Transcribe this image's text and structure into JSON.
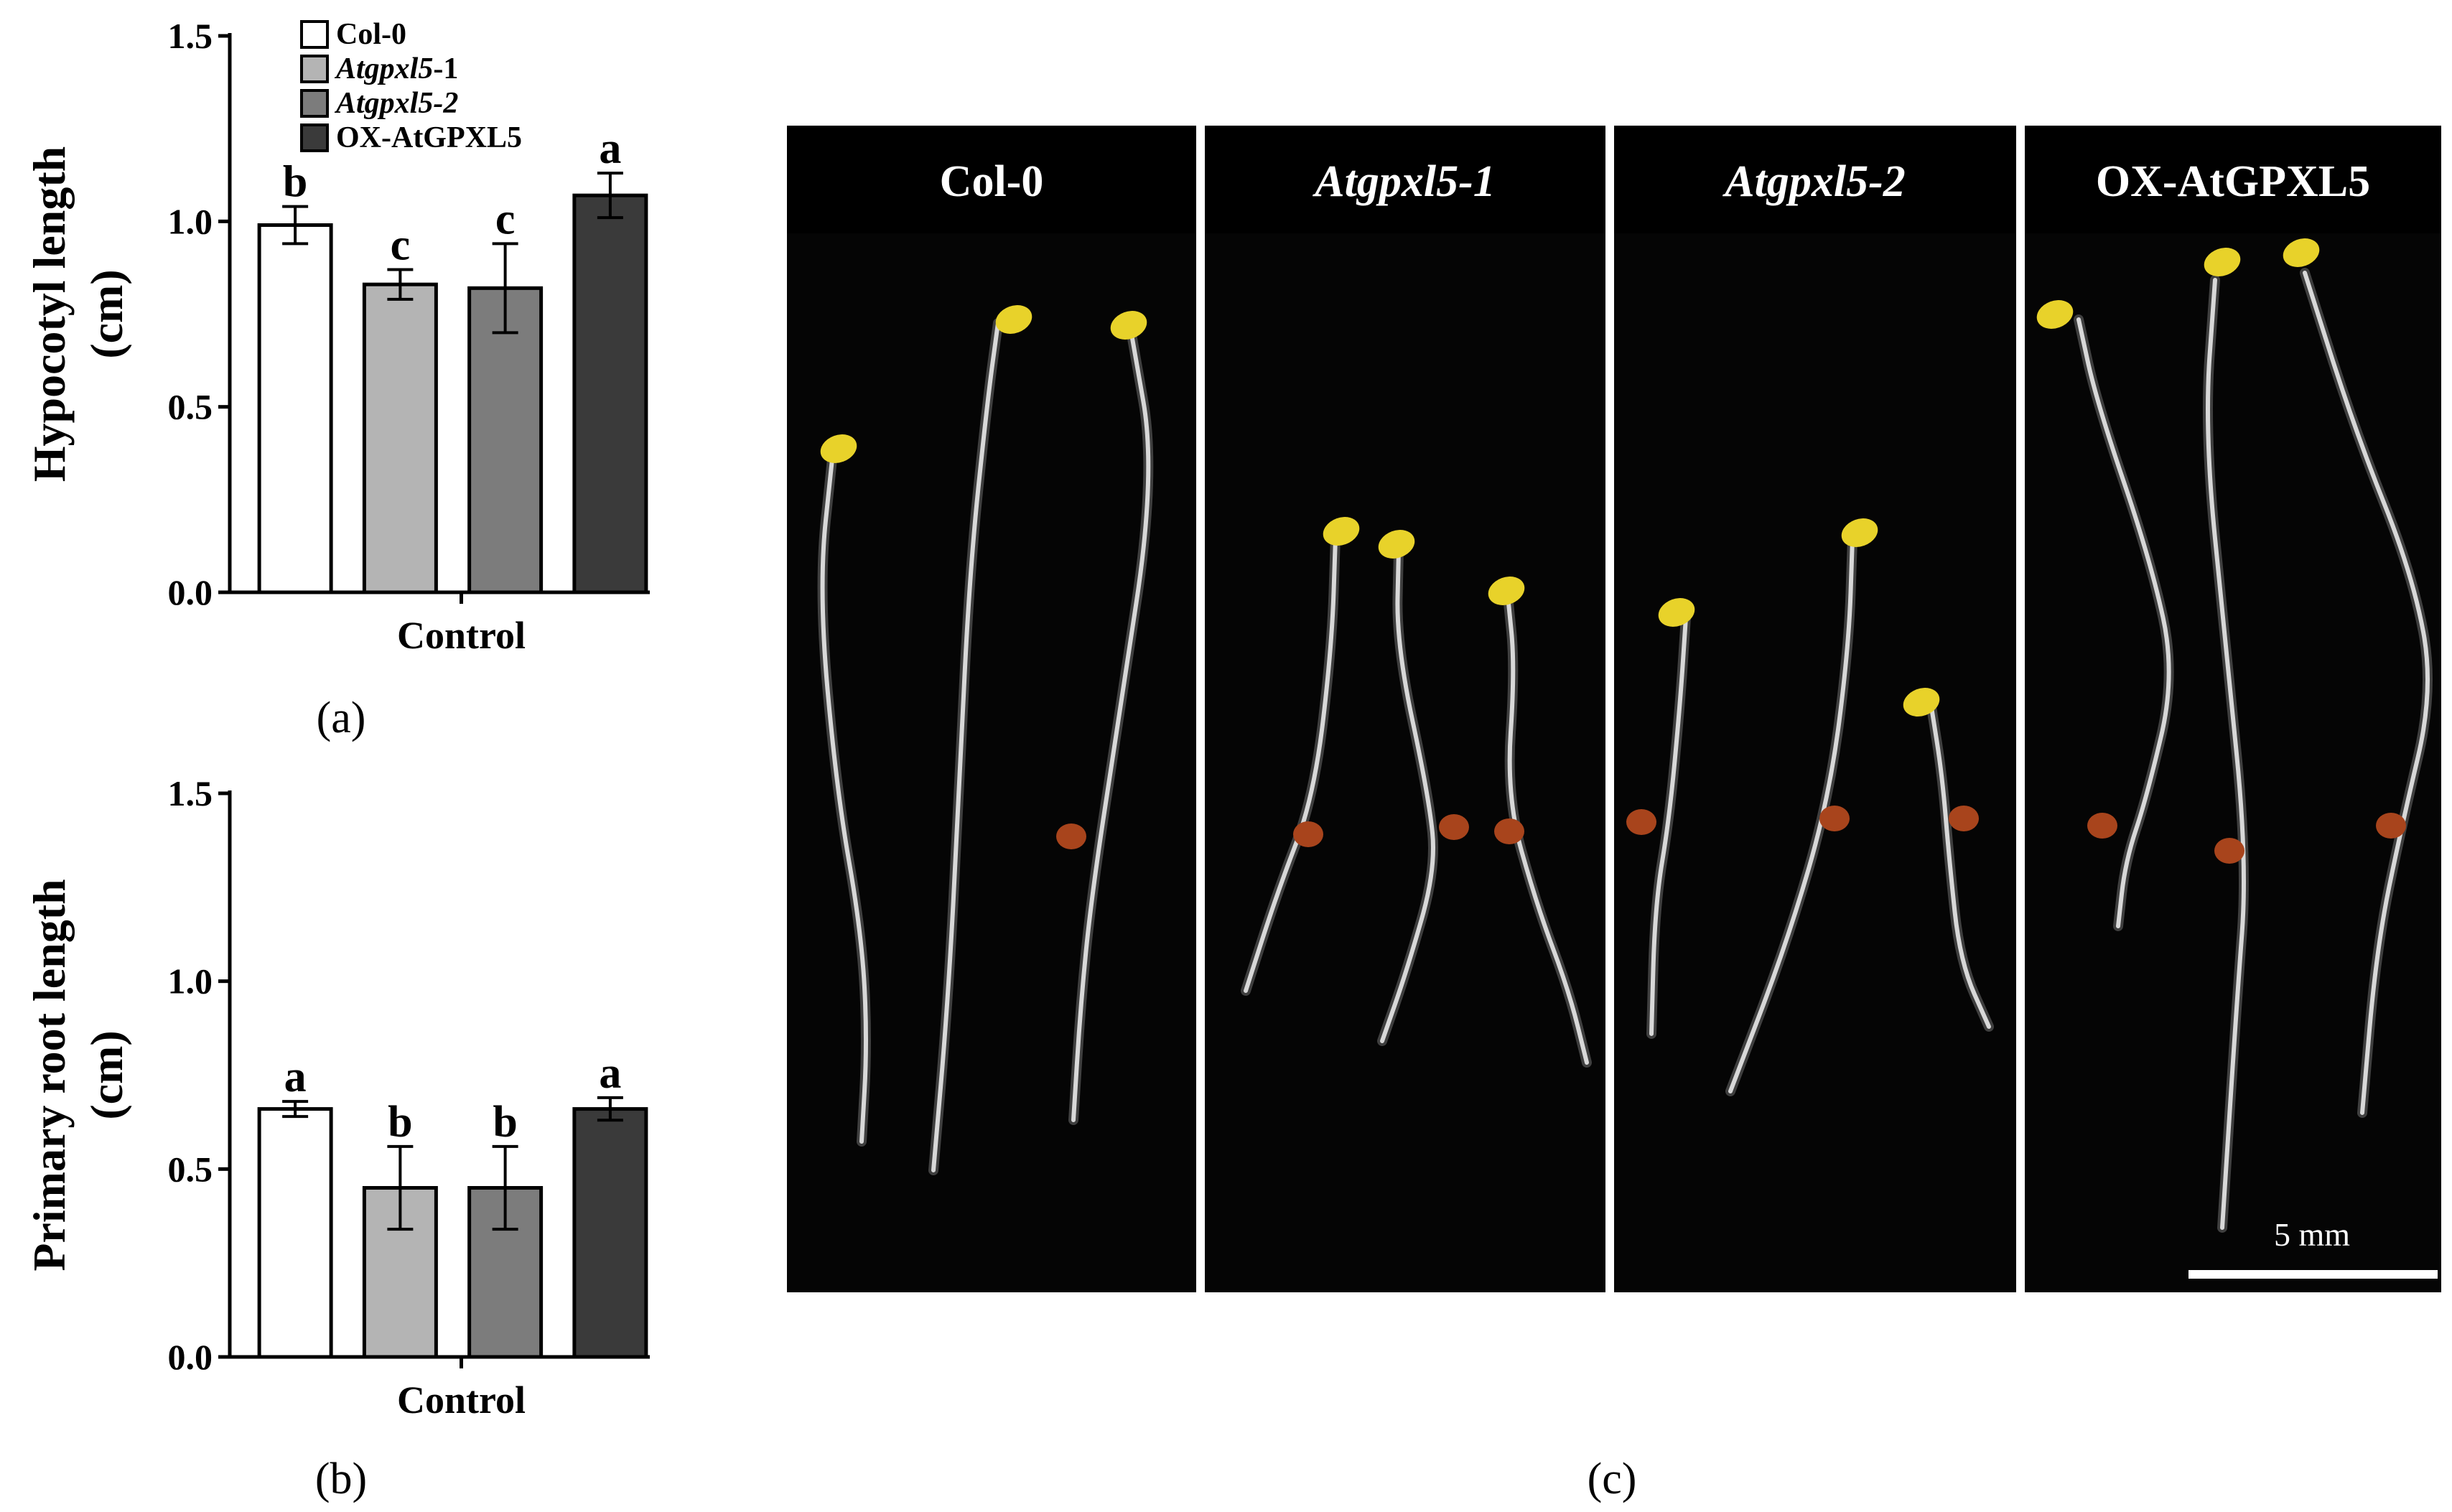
{
  "chart_data": [
    {
      "panel": "(a)",
      "type": "bar",
      "ylabel": "Hypocotyl length (cm)",
      "ylabel_lines": [
        "Hypocotyl length",
        "(cm)"
      ],
      "xlabel": "Control",
      "ylim": [
        0,
        1.5
      ],
      "yticks": [
        "0.0",
        "0.5",
        "1.0",
        "1.5"
      ],
      "ytick_values": [
        0,
        0.5,
        1.0,
        1.5
      ],
      "legend_position": "top-left",
      "series": [
        {
          "name": "Col-0",
          "value": 0.99,
          "error": 0.05,
          "letter": "b",
          "color": "#ffffff",
          "italic_part": "",
          "plain_part": "Col-0"
        },
        {
          "name": "Atgpxl5-1",
          "value": 0.83,
          "error": 0.04,
          "letter": "c",
          "color": "#b4b4b4",
          "italic_part": "Atgpxl5",
          "plain_part": "-1"
        },
        {
          "name": "Atgpxl5-2",
          "value": 0.82,
          "error": 0.12,
          "letter": "c",
          "color": "#7c7c7c",
          "italic_part": "Atgpxl5-2",
          "plain_part": ""
        },
        {
          "name": "OX-AtGPXL5",
          "value": 1.07,
          "error": 0.06,
          "letter": "a",
          "color": "#3a3a3a",
          "italic_part": "",
          "plain_part": "OX-AtGPXL5"
        }
      ]
    },
    {
      "panel": "(b)",
      "type": "bar",
      "ylabel": "Primary root length (cm)",
      "ylabel_lines": [
        "Primary root length",
        "(cm)"
      ],
      "xlabel": "Control",
      "ylim": [
        0,
        1.5
      ],
      "yticks": [
        "0.0",
        "0.5",
        "1.0",
        "1.5"
      ],
      "ytick_values": [
        0,
        0.5,
        1.0,
        1.5
      ],
      "series": [
        {
          "name": "Col-0",
          "value": 0.66,
          "error": 0.02,
          "letter": "a",
          "color": "#ffffff"
        },
        {
          "name": "Atgpxl5-1",
          "value": 0.45,
          "error": 0.11,
          "letter": "b",
          "color": "#b4b4b4"
        },
        {
          "name": "Atgpxl5-2",
          "value": 0.45,
          "error": 0.11,
          "letter": "b",
          "color": "#7c7c7c"
        },
        {
          "name": "OX-AtGPXL5",
          "value": 0.66,
          "error": 0.03,
          "letter": "a",
          "color": "#3a3a3a"
        }
      ]
    }
  ],
  "photo": {
    "panel": "(c)",
    "panels": [
      {
        "label": "Col-0",
        "italic": false
      },
      {
        "label": "Atgpxl5-1",
        "italic": true
      },
      {
        "label": "Atgpxl5-2",
        "italic": true
      },
      {
        "label": "OX-AtGPXL5",
        "italic": false
      }
    ],
    "scale_bar": "5 mm",
    "colors": {
      "background": "#050505",
      "header": "#000000",
      "cotyledon": "#e8d22a",
      "seed": "#a8441c",
      "stem": "#d8d8d8"
    }
  }
}
